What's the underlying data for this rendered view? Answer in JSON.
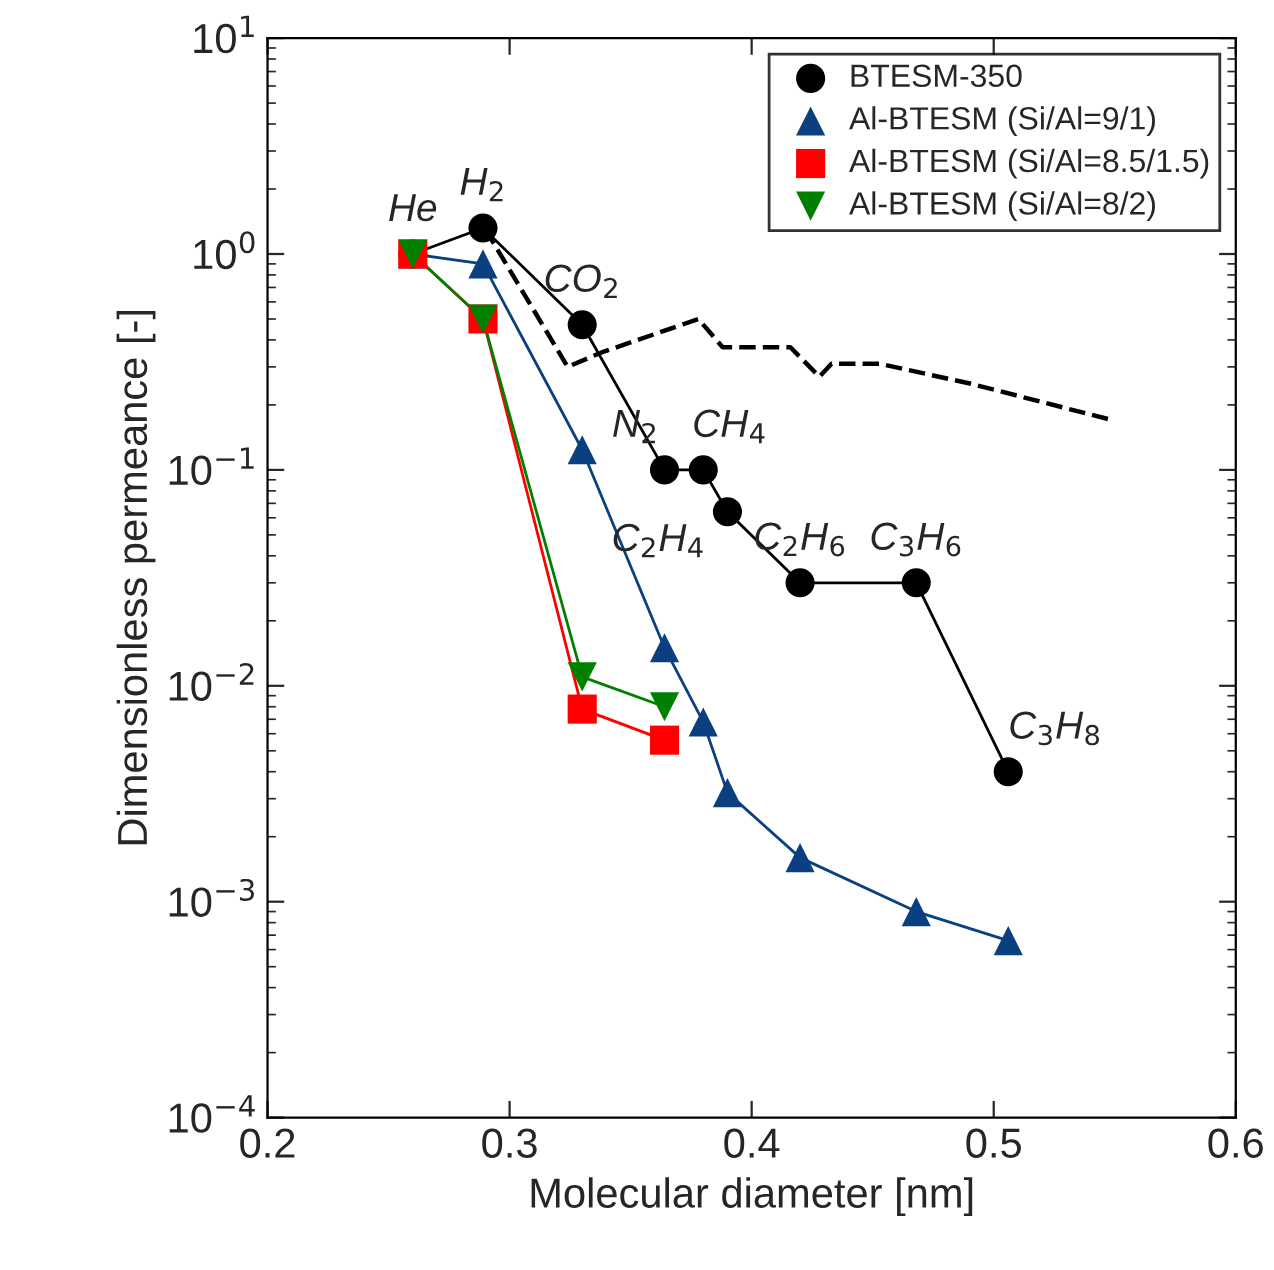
{
  "chart_data": {
    "type": "line",
    "xlabel": "Molecular diameter [nm]",
    "ylabel": "Dimensionless permeance [-]",
    "log": "y",
    "xlim": [
      0.2,
      0.6
    ],
    "xticks": [
      0.2,
      0.3,
      0.4,
      0.5,
      0.6
    ],
    "ylim": [
      0.0001,
      10
    ],
    "yticks": [
      {
        "value": 0.0001,
        "label": "10$^{−4}$"
      },
      {
        "value": 0.001,
        "label": "10$^{−3}$"
      },
      {
        "value": 0.01,
        "label": "10$^{−2}$"
      },
      {
        "value": 0.1,
        "label": "10$^{−1}$"
      },
      {
        "value": 1,
        "label": "10$^{0}$"
      },
      {
        "value": 10,
        "label": "10$^{1}$"
      }
    ],
    "grid": false,
    "legend": "top right",
    "series": [
      {
        "name": "BTESM-350",
        "color": "#000000",
        "marker": "circle",
        "line_style": "solid",
        "x": [
          0.26,
          0.289,
          0.33,
          0.364,
          0.38,
          0.39,
          0.42,
          0.468,
          0.506
        ],
        "values": [
          1.0,
          1.32,
          0.47,
          0.1,
          0.1,
          0.064,
          0.03,
          0.03,
          0.004
        ]
      },
      {
        "name": "Al-BTESM (Si/Al=9/1)",
        "color": "#0a4080",
        "marker": "triangle",
        "line_style": "solid",
        "x": [
          0.26,
          0.289,
          0.33,
          0.364,
          0.38,
          0.39,
          0.42,
          0.468,
          0.506
        ],
        "values": [
          1.0,
          0.9,
          0.124,
          0.015,
          0.0068,
          0.0032,
          0.0016,
          0.0009,
          0.00066
        ]
      },
      {
        "name": "Al-BTESM (Si/Al=8.5/1.5)",
        "color": "#ff0000",
        "marker": "square",
        "line_style": "solid",
        "x": [
          0.26,
          0.289,
          0.33,
          0.364
        ],
        "values": [
          1.0,
          0.5,
          0.0078,
          0.0056
        ]
      },
      {
        "name": "Al-BTESM (Si/Al=8/2)",
        "color": "#008000",
        "marker": "triangle_down",
        "line_style": "solid",
        "x": [
          0.26,
          0.289,
          0.33,
          0.364
        ],
        "values": [
          1.0,
          0.5,
          0.011,
          0.008
        ]
      },
      {
        "color": "#000000",
        "marker": "none",
        "line_style": "dashed",
        "x": [
          0.29,
          0.324,
          0.338,
          0.378,
          0.388,
          0.416,
          0.428,
          0.433,
          0.453,
          0.491,
          0.549
        ],
        "values": [
          1.3,
          0.3,
          0.35,
          0.5,
          0.37,
          0.37,
          0.27,
          0.31,
          0.31,
          0.25,
          0.17
        ]
      }
    ],
    "annotations": [
      {
        "text": "He",
        "x": 0.26,
        "y": 1.0
      },
      {
        "text": "H$_{2}$",
        "x": 0.289,
        "y": 1.32
      },
      {
        "text": "CO$_{2}$",
        "x": 0.33,
        "y": 0.47
      },
      {
        "text": "N$_{2}$",
        "x": 0.364,
        "y": 0.1
      },
      {
        "text": "CH$_{4}$",
        "x": 0.38,
        "y": 0.1
      },
      {
        "text": "C$_{2}$H$_{4}$",
        "x": 0.39,
        "y": 0.064
      },
      {
        "text": "C$_{2}$H$_{6}$",
        "x": 0.42,
        "y": 0.03
      },
      {
        "text": "C$_{3}$H$_{6}$",
        "x": 0.468,
        "y": 0.03
      },
      {
        "text": "C$_{3}$H$_{8}$",
        "x": 0.506,
        "y": 0.004
      }
    ]
  }
}
